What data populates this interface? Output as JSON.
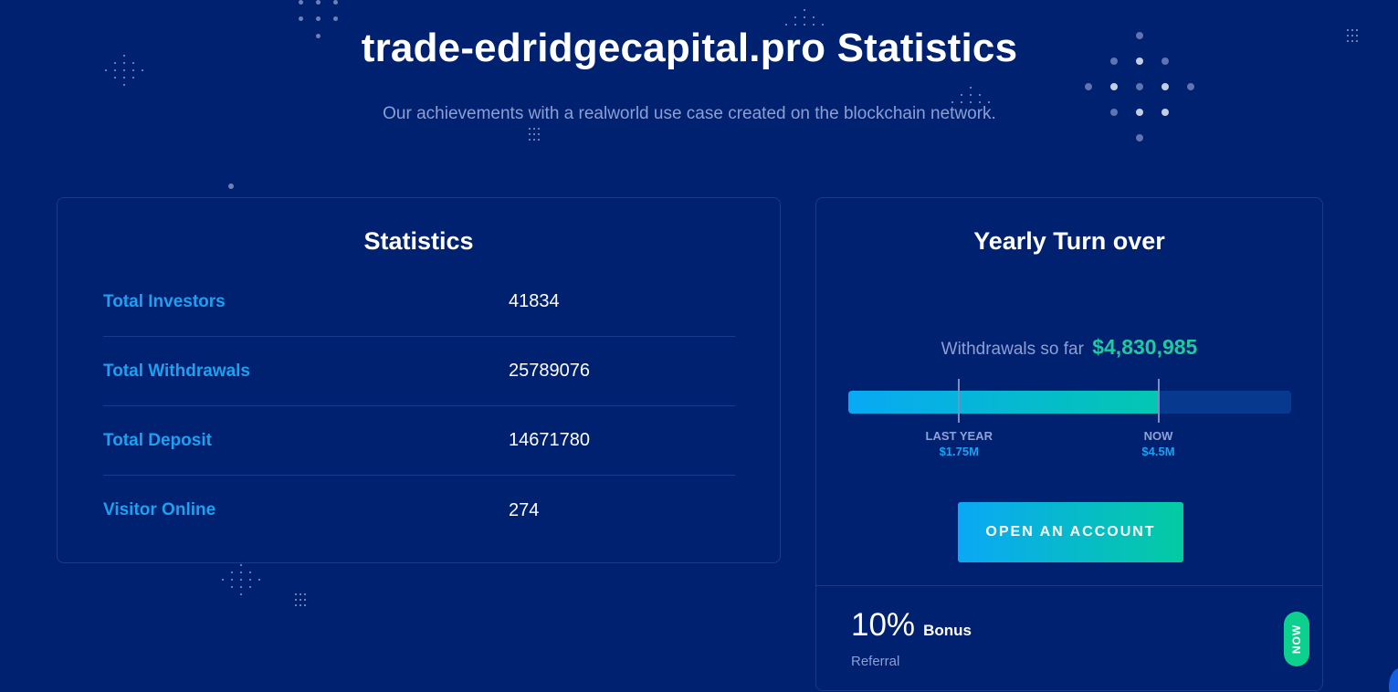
{
  "header": {
    "title": "trade-edridgecapital.pro Statistics",
    "subtitle": "Our achievements with a realworld use case created on the blockchain network."
  },
  "statistics": {
    "title": "Statistics",
    "rows": [
      {
        "label": "Total Investors",
        "value": "41834"
      },
      {
        "label": "Total Withdrawals",
        "value": "25789076"
      },
      {
        "label": "Total Deposit",
        "value": "14671780"
      },
      {
        "label": "Visitor Online",
        "value": "274"
      }
    ]
  },
  "turnover": {
    "title": "Yearly Turn over",
    "withdrawals_label": "Withdrawals so far",
    "withdrawals_amount": "$4,830,985",
    "progress_fraction": 0.7,
    "markers": [
      {
        "label": "LAST YEAR",
        "amount": "$1.75M",
        "fraction": 0.25
      },
      {
        "label": "NOW",
        "amount": "$4.5M",
        "fraction": 0.7
      }
    ],
    "button_label": "OPEN AN ACCOUNT",
    "bonus_percent": "10%",
    "bonus_word": "Bonus",
    "bonus_sub": "Referral",
    "badge": "NOW"
  },
  "colors": {
    "background": "#00216f",
    "accent_blue": "#1ea0f0",
    "accent_green": "#1fc8a0",
    "badge_green": "#0ed08e"
  }
}
